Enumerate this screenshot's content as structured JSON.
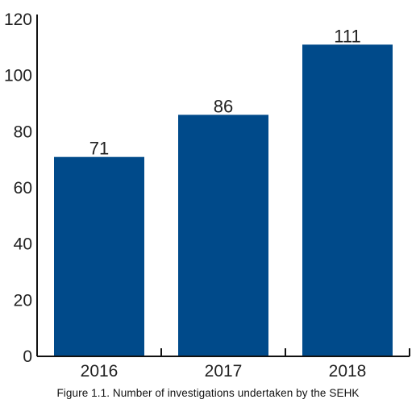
{
  "chart_data": {
    "type": "bar",
    "categories": [
      "2016",
      "2017",
      "2018"
    ],
    "values": [
      71,
      86,
      111
    ],
    "data_labels": [
      "71",
      "86",
      "111"
    ],
    "title": "",
    "xlabel": "",
    "ylabel": "",
    "ylim": [
      0,
      120
    ],
    "yticks": [
      0,
      20,
      40,
      60,
      80,
      100,
      120
    ],
    "grid": false,
    "legend": "none",
    "colors": {
      "bar": "#004a8a",
      "axis": "#111111",
      "text": "#222222"
    }
  },
  "caption": "Figure 1.1.  Number of investigations undertaken by the SEHK"
}
